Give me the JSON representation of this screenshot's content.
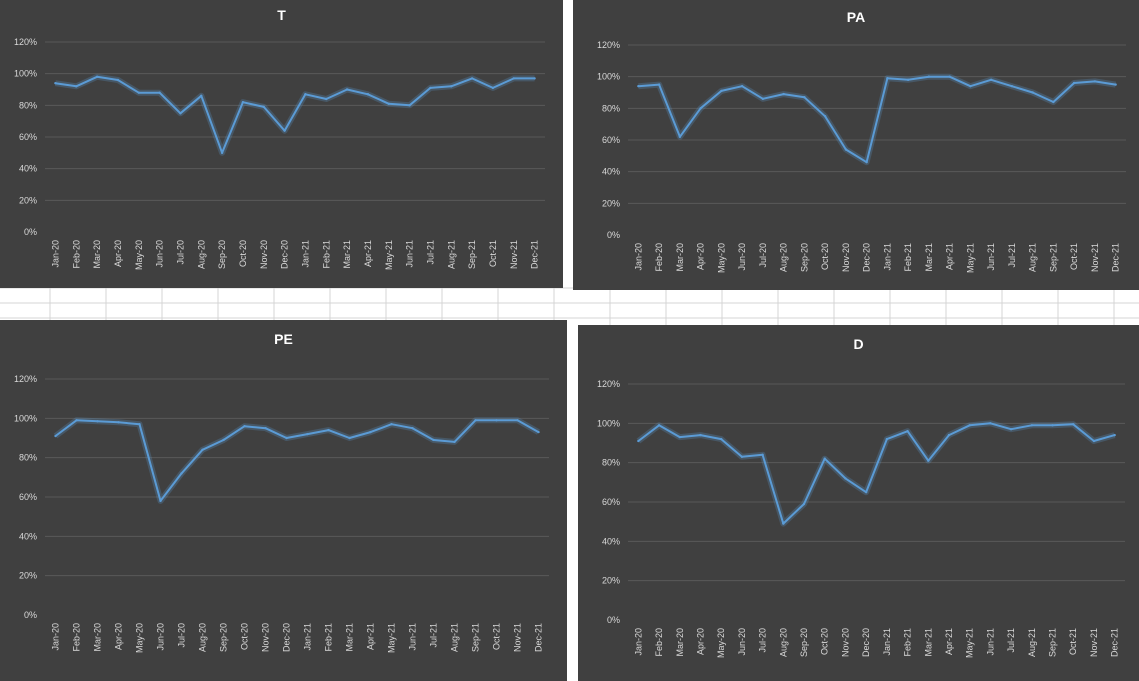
{
  "colors": {
    "chart_background": "#404040",
    "gridline": "#595959",
    "line": "#5b9bd5",
    "text": "#d9d9d9",
    "title": "#ffffff",
    "sheet_grid": "#d4d4d4"
  },
  "chart_data": [
    {
      "type": "line",
      "title": "T",
      "categories": [
        "Jan-20",
        "Feb-20",
        "Mar-20",
        "Apr-20",
        "May-20",
        "Jun-20",
        "Jul-20",
        "Aug-20",
        "Sep-20",
        "Oct-20",
        "Nov-20",
        "Dec-20",
        "Jan-21",
        "Feb-21",
        "Mar-21",
        "Apr-21",
        "May-21",
        "Jun-21",
        "Jul-21",
        "Aug-21",
        "Sep-21",
        "Oct-21",
        "Nov-21",
        "Dec-21"
      ],
      "values": [
        0.94,
        0.92,
        0.98,
        0.96,
        0.88,
        0.88,
        0.75,
        0.86,
        0.5,
        0.82,
        0.79,
        0.64,
        0.87,
        0.84,
        0.9,
        0.87,
        0.81,
        0.8,
        0.91,
        0.92,
        0.97,
        0.91,
        0.97,
        0.97
      ],
      "yticks": [
        "0%",
        "20%",
        "40%",
        "60%",
        "80%",
        "100%",
        "120%"
      ],
      "ylim": [
        0,
        1.2
      ],
      "grid": true,
      "legend": "none"
    },
    {
      "type": "line",
      "title": "PA",
      "categories": [
        "Jan-20",
        "Feb-20",
        "Mar-20",
        "Apr-20",
        "May-20",
        "Jun-20",
        "Jul-20",
        "Aug-20",
        "Sep-20",
        "Oct-20",
        "Nov-20",
        "Dec-20",
        "Jan-21",
        "Feb-21",
        "Mar-21",
        "Apr-21",
        "May-21",
        "Jun-21",
        "Jul-21",
        "Aug-21",
        "Sep-21",
        "Oct-21",
        "Nov-21",
        "Dec-21"
      ],
      "values": [
        0.94,
        0.95,
        0.62,
        0.8,
        0.91,
        0.94,
        0.86,
        0.89,
        0.87,
        0.75,
        0.54,
        0.46,
        0.99,
        0.98,
        1.0,
        1.0,
        0.94,
        0.98,
        0.94,
        0.9,
        0.84,
        0.96,
        0.97,
        0.95
      ],
      "yticks": [
        "0%",
        "20%",
        "40%",
        "60%",
        "80%",
        "100%",
        "120%"
      ],
      "ylim": [
        0,
        1.2
      ],
      "grid": true,
      "legend": "none"
    },
    {
      "type": "line",
      "title": "PE",
      "categories": [
        "Jan-20",
        "Feb-20",
        "Mar-20",
        "Apr-20",
        "May-20",
        "Jun-20",
        "Jul-20",
        "Aug-20",
        "Sep-20",
        "Oct-20",
        "Nov-20",
        "Dec-20",
        "Jan-21",
        "Feb-21",
        "Mar-21",
        "Apr-21",
        "May-21",
        "Jun-21",
        "Jul-21",
        "Aug-21",
        "Sep-21",
        "Oct-21",
        "Nov-21",
        "Dec-21"
      ],
      "values": [
        0.91,
        0.99,
        0.985,
        0.98,
        0.97,
        0.58,
        0.72,
        0.84,
        0.89,
        0.96,
        0.95,
        0.9,
        0.92,
        0.94,
        0.9,
        0.93,
        0.97,
        0.95,
        0.89,
        0.88,
        0.99,
        0.99,
        0.99,
        0.93
      ],
      "yticks": [
        "0%",
        "20%",
        "40%",
        "60%",
        "80%",
        "100%",
        "120%"
      ],
      "ylim": [
        0,
        1.2
      ],
      "grid": true,
      "legend": "none"
    },
    {
      "type": "line",
      "title": "D",
      "categories": [
        "Jan-20",
        "Feb-20",
        "Mar-20",
        "Apr-20",
        "May-20",
        "Jun-20",
        "Jul-20",
        "Aug-20",
        "Sep-20",
        "Oct-20",
        "Nov-20",
        "Dec-20",
        "Jan-21",
        "Feb-21",
        "Mar-21",
        "Apr-21",
        "May-21",
        "Jun-21",
        "Jul-21",
        "Aug-21",
        "Sep-21",
        "Oct-21",
        "Nov-21",
        "Dec-21"
      ],
      "values": [
        0.91,
        0.99,
        0.93,
        0.94,
        0.92,
        0.83,
        0.84,
        0.49,
        0.59,
        0.82,
        0.72,
        0.65,
        0.92,
        0.96,
        0.81,
        0.94,
        0.99,
        1.0,
        0.97,
        0.99,
        0.99,
        0.995,
        0.91,
        0.94
      ],
      "yticks": [
        "0%",
        "20%",
        "40%",
        "60%",
        "80%",
        "100%",
        "120%"
      ],
      "ylim": [
        0,
        1.2
      ],
      "grid": true,
      "legend": "none"
    }
  ]
}
